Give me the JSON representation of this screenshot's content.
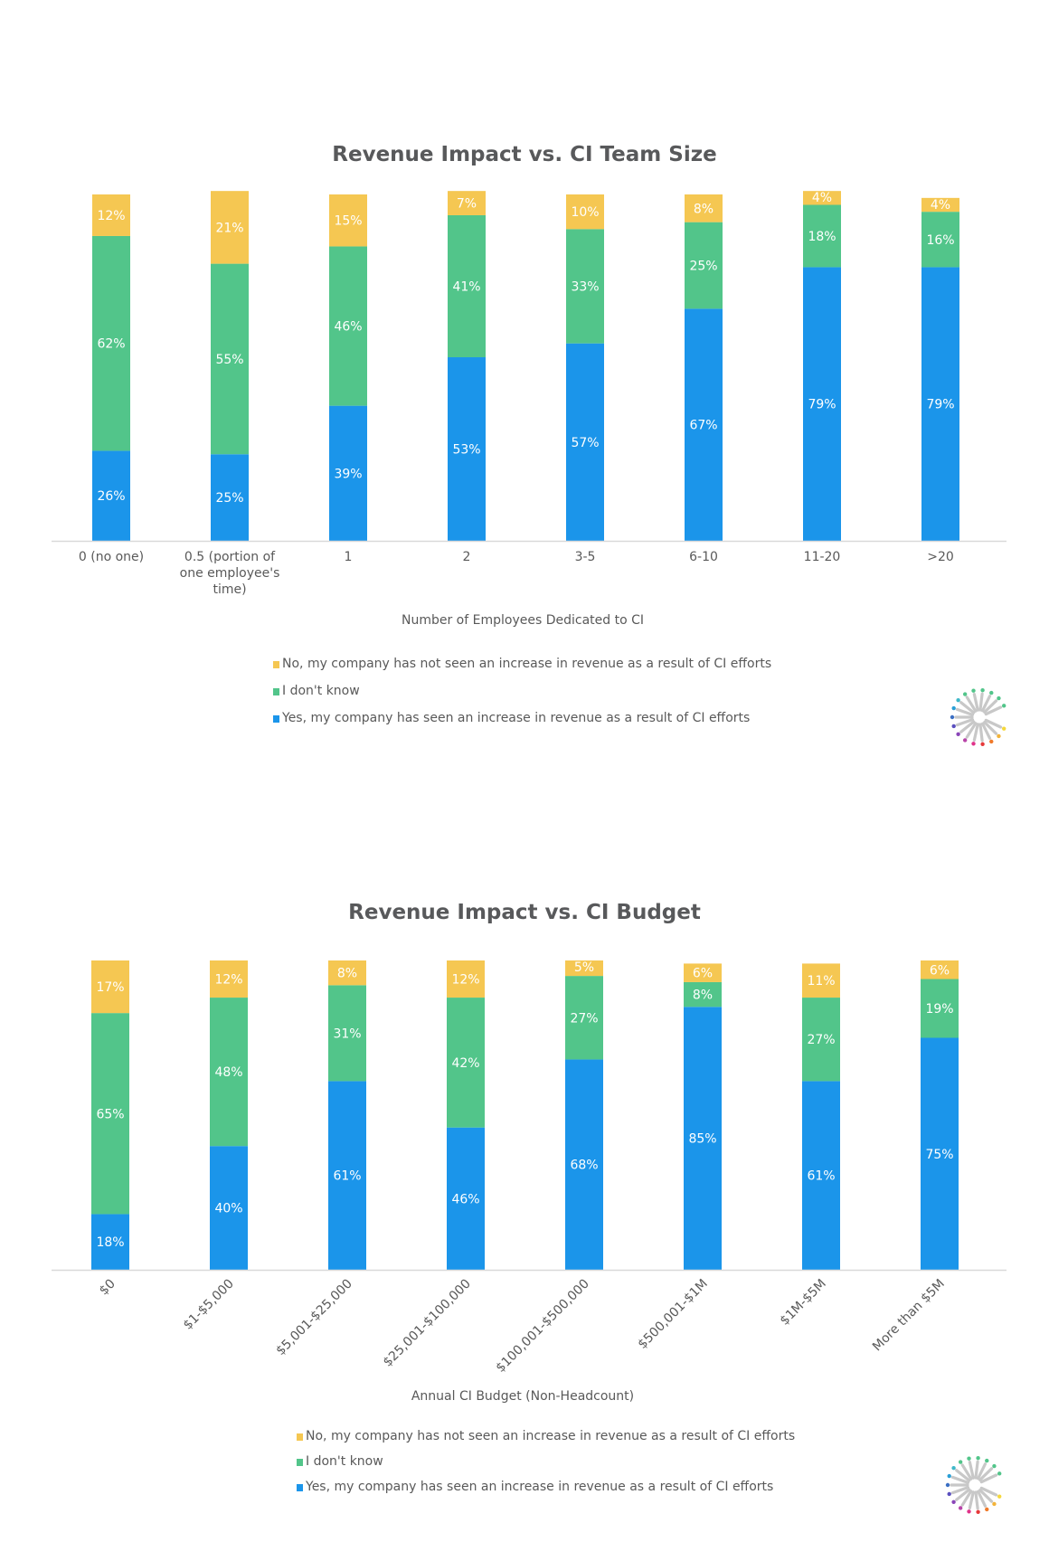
{
  "colors": {
    "no": "#f5c752",
    "dont_know": "#52c58a",
    "yes": "#1b95ea",
    "axis": "#d9d9d9",
    "text": "#595959",
    "title": "#58595b"
  },
  "legend": [
    {
      "key": "no",
      "label": "No, my company has not seen an increase in revenue as a result of CI efforts"
    },
    {
      "key": "dont_know",
      "label": "I don't know"
    },
    {
      "key": "yes",
      "label": "Yes, my company has seen an increase in revenue as a result of CI efforts"
    }
  ],
  "logo": {
    "icon": "radial-burst-c-logo-icon"
  },
  "chart_data": [
    {
      "type": "bar",
      "stacked": true,
      "title": "Revenue Impact vs. CI Team Size",
      "xlabel": "Number of Employees Dedicated to CI",
      "ylabel": "",
      "ylim": [
        0,
        100
      ],
      "grid": false,
      "legend_position": "bottom",
      "categories": [
        [
          "0 (no one)"
        ],
        [
          "0.5 (portion of",
          "one employee's",
          "time)"
        ],
        [
          "1"
        ],
        [
          "2"
        ],
        [
          "3-5"
        ],
        [
          "6-10"
        ],
        [
          "11-20"
        ],
        [
          ">20"
        ]
      ],
      "category_names": [
        "0 (no one)",
        "0.5 (portion of one employee's time)",
        "1",
        "2",
        "3-5",
        "6-10",
        "11-20",
        ">20"
      ],
      "series": [
        {
          "key": "yes",
          "name": "Yes, my company has seen an increase in revenue as a result of CI efforts",
          "values": [
            26,
            25,
            39,
            53,
            57,
            67,
            79,
            79
          ]
        },
        {
          "key": "dont_know",
          "name": "I don't know",
          "values": [
            62,
            55,
            46,
            41,
            33,
            25,
            18,
            16
          ]
        },
        {
          "key": "no",
          "name": "No, my company has not seen an increase in revenue as a result of CI efforts",
          "values": [
            12,
            21,
            15,
            7,
            10,
            8,
            4,
            4
          ]
        }
      ],
      "tick_rotation": 0
    },
    {
      "type": "bar",
      "stacked": true,
      "title": "Revenue Impact vs. CI Budget",
      "xlabel": "Annual CI Budget (Non-Headcount)",
      "ylabel": "",
      "ylim": [
        0,
        100
      ],
      "grid": false,
      "legend_position": "bottom",
      "categories": [
        [
          "$0"
        ],
        [
          "$1-$5,000"
        ],
        [
          "$5,001-$25,000"
        ],
        [
          "$25,001-$100,000"
        ],
        [
          "$100,001-$500,000"
        ],
        [
          "$500,001-$1M"
        ],
        [
          "$1M-$5M"
        ],
        [
          "More than $5M"
        ]
      ],
      "category_names": [
        "$0",
        "$1-$5,000",
        "$5,001-$25,000",
        "$25,001-$100,000",
        "$100,001-$500,000",
        "$500,001-$1M",
        "$1M-$5M",
        "More than $5M"
      ],
      "series": [
        {
          "key": "yes",
          "name": "Yes, my company has seen an increase in revenue as a result of CI efforts",
          "values": [
            18,
            40,
            61,
            46,
            68,
            85,
            61,
            75
          ]
        },
        {
          "key": "dont_know",
          "name": "I don't know",
          "values": [
            65,
            48,
            31,
            42,
            27,
            8,
            27,
            19
          ]
        },
        {
          "key": "no",
          "name": "No, my company has not seen an increase in revenue as a result of CI efforts",
          "values": [
            17,
            12,
            8,
            12,
            5,
            6,
            11,
            6
          ]
        }
      ],
      "tick_rotation": -45
    }
  ]
}
